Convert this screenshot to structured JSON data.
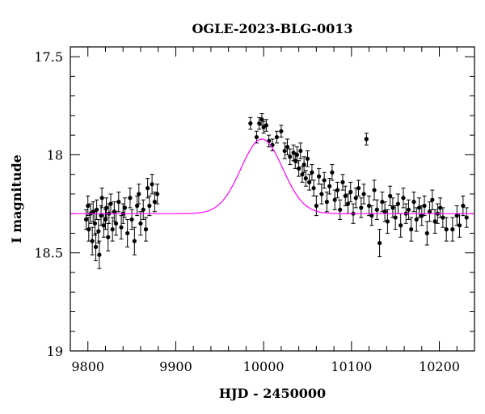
{
  "chart_data": {
    "type": "scatter",
    "title": "OGLE-2023-BLG-0013",
    "xlabel": "HJD - 2450000",
    "ylabel": "I magnitude",
    "xlim": [
      9780,
      10240
    ],
    "ylim": [
      19.0,
      17.45
    ],
    "y_inverted": true,
    "grid": false,
    "x_major_ticks": [
      9800,
      9900,
      10000,
      10100,
      10200
    ],
    "x_tick_labels": [
      "9800",
      "9900",
      "10000",
      "10100",
      "10200"
    ],
    "y_major_ticks": [
      17.5,
      18.0,
      18.5,
      19.0
    ],
    "y_tick_labels": [
      "17.5",
      "18",
      "18.5",
      "19"
    ],
    "colors": {
      "data": "#000000",
      "model": "#ff00ff",
      "frame": "#000000"
    },
    "model": {
      "name": "",
      "baseline_mag": 18.3,
      "peak_time": 9998,
      "peak_mag": 17.92,
      "timescale_days": 28
    },
    "series": [
      {
        "name": "",
        "marker": "filled-circle-with-errorbar",
        "x": [
          9798,
          9800,
          9801,
          9803,
          9805,
          9806,
          9808,
          9809,
          9810,
          9812,
          9813,
          9815,
          9816,
          9818,
          9820,
          9821,
          9823,
          9824,
          9826,
          9828,
          9830,
          9832,
          9835,
          9838,
          9840,
          9842,
          9845,
          9848,
          9850,
          9853,
          9856,
          9858,
          9860,
          9863,
          9866,
          9868,
          9870,
          9873,
          9876,
          9879,
          9985,
          9992,
          9995,
          9998,
          10000,
          10003,
          10006,
          10010,
          10015,
          10020,
          10024,
          10027,
          10030,
          10034,
          10036,
          10038,
          10040,
          10042,
          10044,
          10046,
          10048,
          10050,
          10052,
          10055,
          10057,
          10060,
          10063,
          10066,
          10069,
          10072,
          10075,
          10078,
          10081,
          10084,
          10087,
          10090,
          10093,
          10096,
          10099,
          10102,
          10105,
          10108,
          10111,
          10114,
          10117,
          10120,
          10123,
          10126,
          10129,
          10132,
          10135,
          10138,
          10141,
          10144,
          10147,
          10150,
          10153,
          10156,
          10159,
          10162,
          10165,
          10168,
          10171,
          10174,
          10177,
          10180,
          10183,
          10186,
          10189,
          10192,
          10195,
          10198,
          10201,
          10204,
          10208,
          10215,
          10220,
          10223,
          10227,
          10231
        ],
        "y": [
          18.33,
          18.26,
          18.38,
          18.3,
          18.44,
          18.29,
          18.35,
          18.47,
          18.28,
          18.39,
          18.51,
          18.31,
          18.22,
          18.36,
          18.33,
          18.27,
          18.42,
          18.3,
          18.25,
          18.38,
          18.29,
          18.35,
          18.24,
          18.37,
          18.3,
          18.27,
          18.4,
          18.22,
          18.33,
          18.44,
          18.26,
          18.2,
          18.35,
          18.28,
          18.38,
          18.17,
          18.26,
          18.15,
          18.24,
          18.2,
          17.84,
          17.91,
          17.84,
          17.82,
          17.86,
          17.85,
          17.93,
          17.95,
          17.91,
          17.88,
          17.98,
          17.96,
          18.01,
          17.99,
          18.03,
          18.0,
          18.07,
          17.98,
          18.1,
          18.05,
          18.12,
          18.02,
          18.14,
          18.09,
          18.17,
          18.26,
          18.11,
          18.2,
          18.13,
          18.24,
          18.16,
          18.09,
          18.23,
          18.18,
          18.28,
          18.14,
          18.21,
          18.25,
          18.19,
          18.3,
          18.22,
          18.17,
          18.27,
          18.2,
          17.92,
          18.26,
          18.31,
          18.18,
          18.28,
          18.45,
          18.24,
          18.29,
          18.34,
          18.21,
          18.27,
          18.32,
          18.25,
          18.36,
          18.22,
          18.3,
          18.28,
          18.38,
          18.24,
          18.33,
          18.27,
          18.31,
          18.26,
          18.4,
          18.29,
          18.23,
          18.34,
          18.3,
          18.27,
          18.32,
          18.38,
          18.38,
          18.31,
          18.36,
          18.26,
          18.32
        ],
        "yerr": [
          0.05,
          0.05,
          0.06,
          0.05,
          0.07,
          0.05,
          0.06,
          0.07,
          0.05,
          0.06,
          0.07,
          0.05,
          0.05,
          0.06,
          0.05,
          0.05,
          0.07,
          0.05,
          0.05,
          0.06,
          0.05,
          0.06,
          0.05,
          0.06,
          0.05,
          0.05,
          0.07,
          0.05,
          0.05,
          0.07,
          0.05,
          0.05,
          0.06,
          0.05,
          0.06,
          0.05,
          0.05,
          0.05,
          0.05,
          0.05,
          0.03,
          0.03,
          0.03,
          0.03,
          0.03,
          0.03,
          0.03,
          0.03,
          0.03,
          0.03,
          0.04,
          0.04,
          0.04,
          0.04,
          0.04,
          0.04,
          0.04,
          0.04,
          0.04,
          0.04,
          0.04,
          0.04,
          0.04,
          0.04,
          0.04,
          0.05,
          0.04,
          0.05,
          0.04,
          0.05,
          0.04,
          0.04,
          0.05,
          0.04,
          0.05,
          0.04,
          0.05,
          0.05,
          0.05,
          0.05,
          0.05,
          0.04,
          0.05,
          0.05,
          0.03,
          0.05,
          0.05,
          0.05,
          0.05,
          0.07,
          0.05,
          0.05,
          0.06,
          0.05,
          0.05,
          0.06,
          0.05,
          0.06,
          0.05,
          0.05,
          0.05,
          0.06,
          0.05,
          0.06,
          0.05,
          0.05,
          0.05,
          0.06,
          0.05,
          0.05,
          0.06,
          0.05,
          0.05,
          0.05,
          0.06,
          0.06,
          0.05,
          0.06,
          0.05,
          0.05
        ]
      }
    ]
  }
}
